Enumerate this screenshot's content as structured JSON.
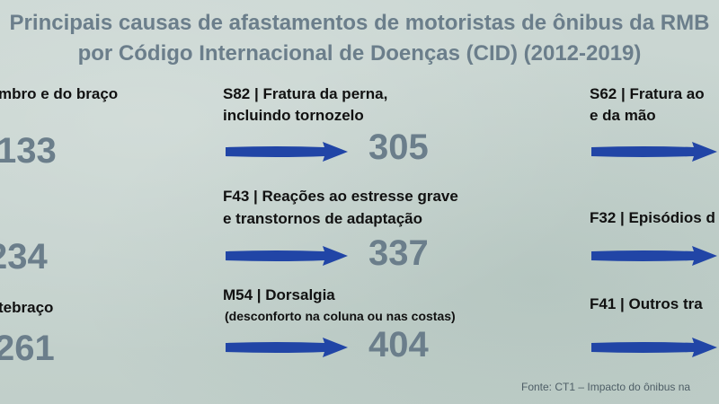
{
  "title_line1": "Principais causas de afastamentos de motoristas de ônibus da RMB",
  "title_line2": "por Código Internacional de Doenças (CID) (2012-2019)",
  "colors": {
    "arrow": "#2145a6",
    "title": "#6b7e8b",
    "value": "#6b7e8b"
  },
  "left_column": [
    {
      "label": "mbro e do braço",
      "value": "133"
    },
    {
      "label": "",
      "value": "234"
    },
    {
      "label": "tebraço",
      "value": "261"
    }
  ],
  "middle_column": [
    {
      "label_line1": "S82 | Fratura da perna,",
      "label_line2": "incluindo tornozelo",
      "value": "305"
    },
    {
      "label_line1": "F43 | Reações ao estresse grave",
      "label_line2": "e transtornos de adaptação",
      "value": "337"
    },
    {
      "label_line1": "M54 | Dorsalgia",
      "label_line2": "(desconforto na coluna ou nas costas)",
      "value": "404"
    }
  ],
  "right_column": [
    {
      "label_line1": "S62 | Fratura ao",
      "label_line2": "e da mão"
    },
    {
      "label_line1": "F32 | Episódios d"
    },
    {
      "label_line1": "F41 | Outros tra"
    }
  ],
  "source": "Fonte: CT1 – Impacto do ônibus na"
}
